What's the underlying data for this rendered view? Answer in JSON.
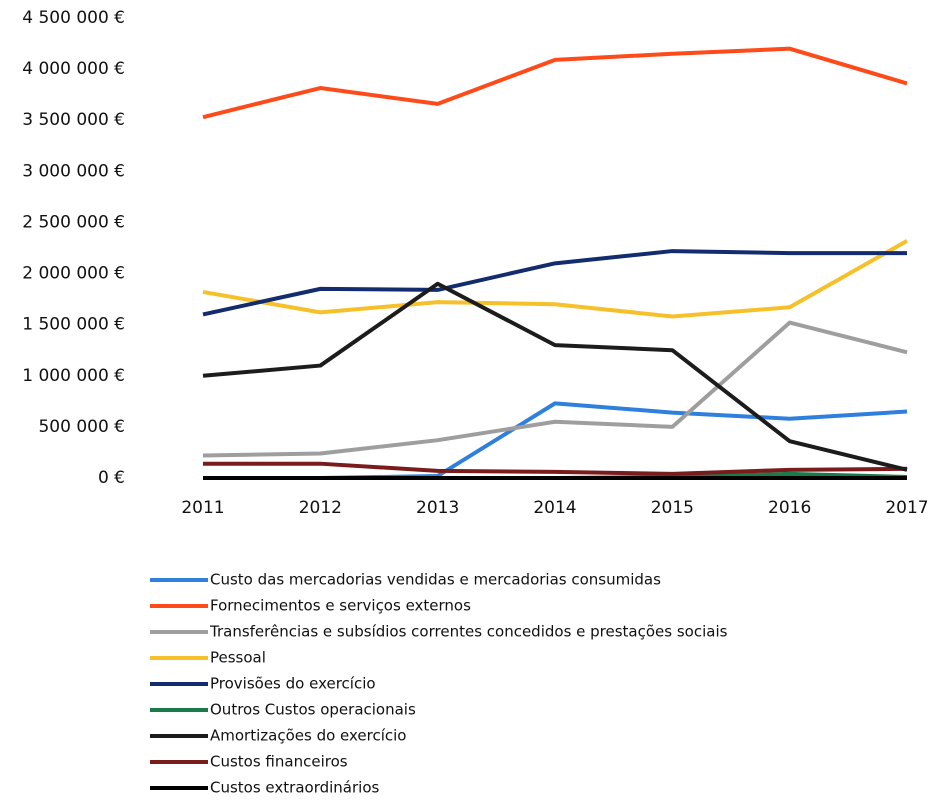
{
  "chart_data": {
    "type": "line",
    "x": [
      "2011",
      "2012",
      "2013",
      "2014",
      "2015",
      "2016",
      "2017"
    ],
    "ylim": [
      0,
      4500000
    ],
    "yticks": [
      {
        "value": 0,
        "label": "0 €"
      },
      {
        "value": 500000,
        "label": "500 000 €"
      },
      {
        "value": 1000000,
        "label": "1 000 000 €"
      },
      {
        "value": 1500000,
        "label": "1 500 000 €"
      },
      {
        "value": 2000000,
        "label": "2 000 000 €"
      },
      {
        "value": 2500000,
        "label": "2 500 000 €"
      },
      {
        "value": 3000000,
        "label": "3 000 000 €"
      },
      {
        "value": 3500000,
        "label": "3 500 000 €"
      },
      {
        "value": 4000000,
        "label": "4 000 000 €"
      },
      {
        "value": 4500000,
        "label": "4 500 000 €"
      }
    ],
    "series": [
      {
        "name": "Custo das mercadorias vendidas e mercadorias consumidas",
        "color": "#2f7fdc",
        "values": [
          0,
          0,
          20000,
          730000,
          640000,
          580000,
          650000
        ]
      },
      {
        "name": "Fornecimentos e serviços externos",
        "color": "#ff4a1a",
        "values": [
          3530000,
          3815000,
          3660000,
          4090000,
          4150000,
          4200000,
          3860000
        ]
      },
      {
        "name": "Transferências e subsídios correntes concedidos e prestações sociais",
        "color": "#9e9e9e",
        "values": [
          220000,
          240000,
          370000,
          550000,
          500000,
          1520000,
          1230000
        ]
      },
      {
        "name": "Pessoal",
        "color": "#f5c02a",
        "values": [
          1820000,
          1620000,
          1720000,
          1700000,
          1580000,
          1670000,
          2320000
        ]
      },
      {
        "name": "Provisões do exercício",
        "color": "#122c6e",
        "values": [
          1600000,
          1850000,
          1840000,
          2100000,
          2220000,
          2200000,
          2200000
        ]
      },
      {
        "name": "Outros Custos operacionais",
        "color": "#1b7a4c",
        "values": [
          0,
          0,
          0,
          0,
          10000,
          40000,
          10000
        ]
      },
      {
        "name": "Amortizações do exercício",
        "color": "#1c1c1c",
        "values": [
          1000000,
          1100000,
          1900000,
          1300000,
          1250000,
          360000,
          80000
        ]
      },
      {
        "name": "Custos financeiros",
        "color": "#7a1c1c",
        "values": [
          140000,
          140000,
          70000,
          60000,
          40000,
          80000,
          90000
        ]
      },
      {
        "name": "Custos extraordinários",
        "color": "#000000",
        "values": [
          0,
          0,
          0,
          0,
          0,
          0,
          0
        ]
      }
    ]
  }
}
